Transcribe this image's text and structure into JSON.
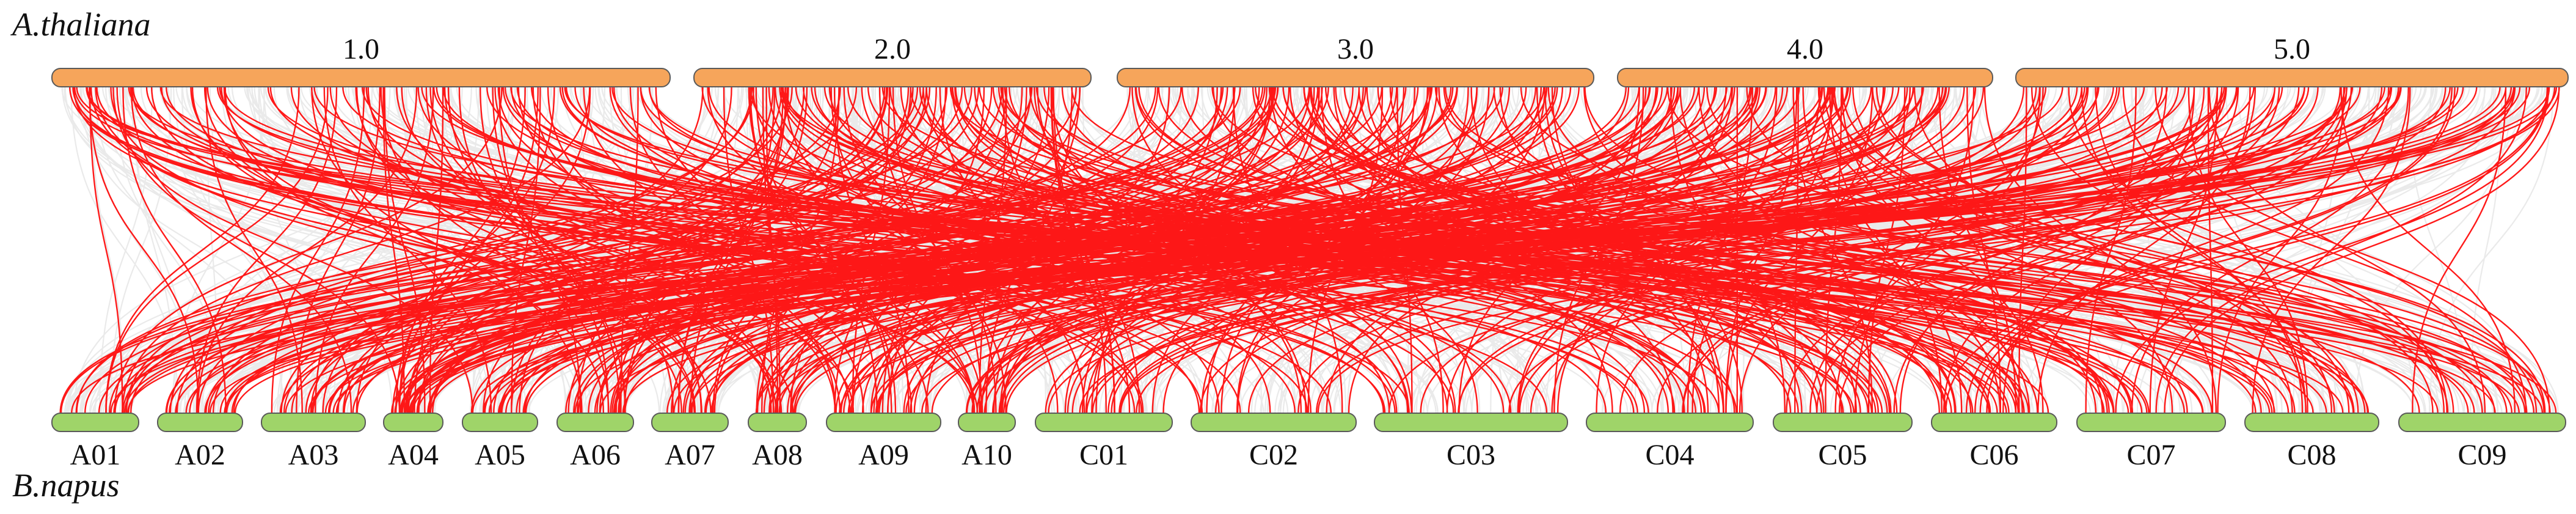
{
  "species": {
    "top": "A.thaliana",
    "bottom": "B.napus"
  },
  "colors": {
    "top_chromosome": "#F6A55B",
    "bottom_chromosome": "#9FD469",
    "background_link": "#E6E6E6",
    "highlight_link": "#FF0000",
    "chromosome_stroke": "#5a5a5a"
  },
  "top_chromosomes": [
    {
      "label": "1.0"
    },
    {
      "label": "2.0"
    },
    {
      "label": "3.0"
    },
    {
      "label": "4.0"
    },
    {
      "label": "5.0"
    }
  ],
  "bottom_chromosomes": [
    {
      "label": "A01"
    },
    {
      "label": "A02"
    },
    {
      "label": "A03"
    },
    {
      "label": "A04"
    },
    {
      "label": "A05"
    },
    {
      "label": "A06"
    },
    {
      "label": "A07"
    },
    {
      "label": "A08"
    },
    {
      "label": "A09"
    },
    {
      "label": "A10"
    },
    {
      "label": "C01"
    },
    {
      "label": "C02"
    },
    {
      "label": "C03"
    },
    {
      "label": "C04"
    },
    {
      "label": "C05"
    },
    {
      "label": "C06"
    },
    {
      "label": "C07"
    },
    {
      "label": "C08"
    },
    {
      "label": "C09"
    }
  ]
}
